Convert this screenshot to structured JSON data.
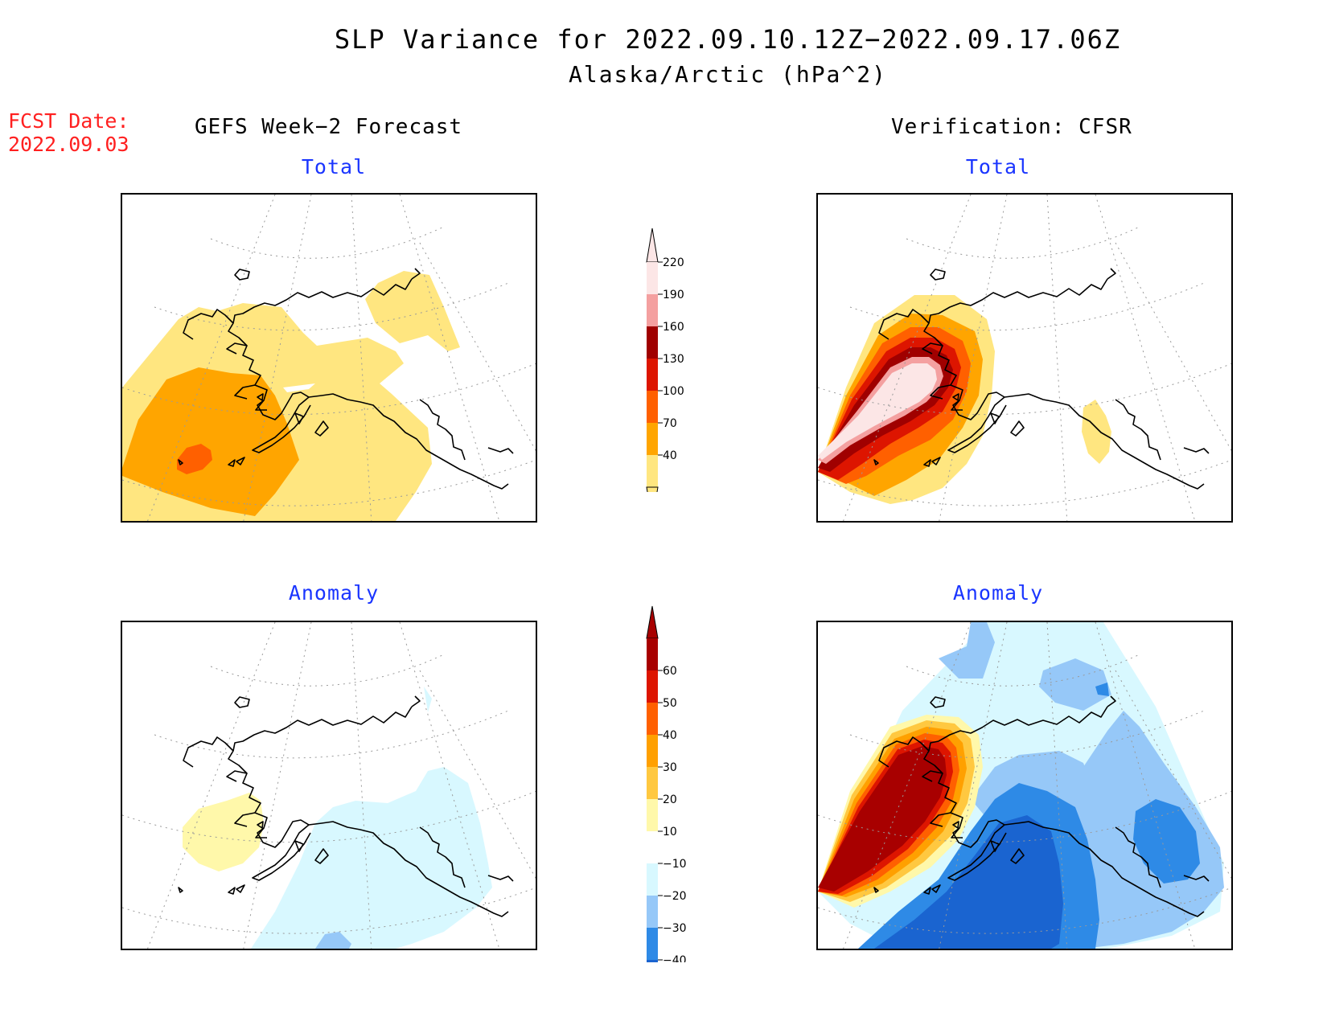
{
  "title": "SLP Variance for 2022.09.10.12Z−2022.09.17.06Z",
  "subtitle": "Alaska/Arctic (hPa^2)",
  "forecast_date_label": "FCST Date:",
  "forecast_date": "2022.09.03",
  "columns": {
    "left": "GEFS Week−2 Forecast",
    "right": "Verification: CFSR"
  },
  "panels": {
    "top_left": "Total",
    "top_right": "Total",
    "bottom_left": "Anomaly",
    "bottom_right": "Anomaly"
  },
  "colorbars": {
    "total": {
      "ticks": [
        "40",
        "70",
        "100",
        "130",
        "160",
        "190",
        "220"
      ],
      "colors": [
        "#ffe680",
        "#ffa500",
        "#ff6000",
        "#dd1500",
        "#a00000",
        "#f4a0a0",
        "#fce6e6"
      ]
    },
    "anomaly": {
      "ticks": [
        "−40",
        "−30",
        "−20",
        "−10",
        "10",
        "20",
        "30",
        "40",
        "50",
        "60"
      ],
      "colors": [
        "#1a64d0",
        "#2e8ae6",
        "#96c8f8",
        "#d8f8ff",
        "#ffffff",
        "#fff8aa",
        "#ffc840",
        "#ffa000",
        "#ff6000",
        "#dd1500",
        "#a80000"
      ]
    }
  }
}
